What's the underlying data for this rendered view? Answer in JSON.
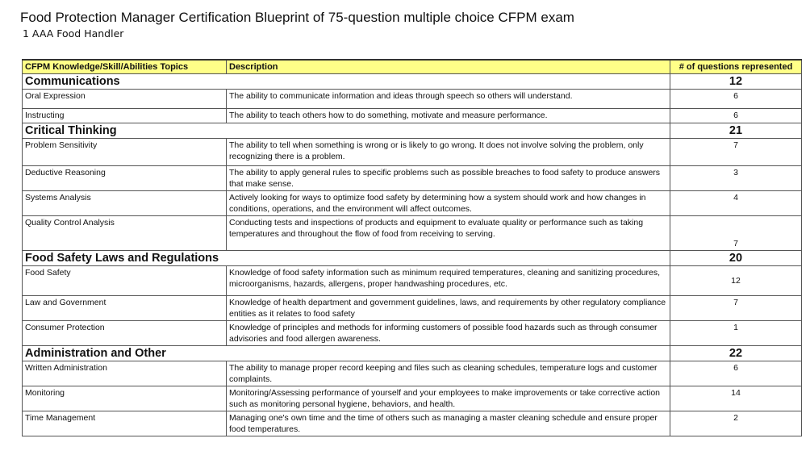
{
  "title": "Food Protection Manager Certification Blueprint of 75-question multiple choice CFPM exam",
  "subtitle": "1 AAA Food Handler",
  "headers": {
    "topic": "CFPM Knowledge/Skill/Abilities Topics",
    "description": "Description",
    "count": "# of questions represented"
  },
  "rows": [
    {
      "type": "cat",
      "topic": "Communications",
      "count": "12"
    },
    {
      "type": "item",
      "topic": "Oral Expression",
      "description": "The ability to communicate information and ideas through speech so others will understand.",
      "count": "6",
      "h": 24
    },
    {
      "type": "item",
      "topic": "Instructing",
      "description": "The ability to teach others how to do something, motivate and measure performance.",
      "count": "6",
      "h": 18
    },
    {
      "type": "cat",
      "topic": "Critical Thinking",
      "count": "21"
    },
    {
      "type": "item",
      "topic": "Problem Sensitivity",
      "description": "The ability to tell when something is wrong or is likely to go wrong. It does not involve solving the problem, only recognizing there is a problem.",
      "count": "7",
      "h": 34
    },
    {
      "type": "item",
      "topic": "Deductive Reasoning",
      "description": "The ability to apply general rules to specific problems such as possible breaches to food safety to produce answers that make sense.",
      "count": "3",
      "h": 28
    },
    {
      "type": "item",
      "topic": "Systems Analysis",
      "description": "Actively looking for ways to optimize food safety by determining how a system should work and how changes in conditions, operations, and the environment will affect outcomes.",
      "count": "4",
      "h": 30
    },
    {
      "type": "item",
      "topic": "Quality Control Analysis",
      "description": "Conducting tests and inspections of products and equipment to evaluate quality or performance such as taking temperatures and throughout the flow of food from receiving to serving.",
      "count": "7",
      "h": 43,
      "align": "bot"
    },
    {
      "type": "cat",
      "topic": "Food Safety Laws and Regulations",
      "count": "20"
    },
    {
      "type": "item",
      "topic": "Food Safety",
      "description": "Knowledge of food safety information such as minimum required temperatures, cleaning and sanitizing procedures, microorganisms, hazards, allergens, proper handwashing procedures, etc.",
      "count": "12",
      "h": 37,
      "align": "mid"
    },
    {
      "type": "item",
      "topic": "Law and Government",
      "description": "Knowledge of health department and government guidelines, laws, and requirements by other regulatory compliance entities as it relates to food safety",
      "count": "7",
      "h": 28
    },
    {
      "type": "item",
      "topic": "Consumer Protection",
      "description": "Knowledge of principles and methods for informing customers of possible food hazards such as through consumer advisories and food allergen awareness.",
      "count": "1",
      "h": 27
    },
    {
      "type": "cat",
      "topic": "Administration and Other",
      "count": "22"
    },
    {
      "type": "item",
      "topic": "Written Administration",
      "description": "The ability to manage proper record keeping and files such as cleaning schedules, temperature logs and customer complaints.",
      "count": "6",
      "h": 31
    },
    {
      "type": "item",
      "topic": "Monitoring",
      "description": "Monitoring/Assessing performance of yourself and your employees to make improvements or take corrective action such as monitoring personal hygiene, behaviors, and health.",
      "count": "14",
      "h": 29
    },
    {
      "type": "item",
      "topic": "Time Management",
      "description": "Managing one's own time and the time of others such as managing a master cleaning schedule and ensure proper food temperatures.",
      "count": "2",
      "h": 30
    }
  ]
}
